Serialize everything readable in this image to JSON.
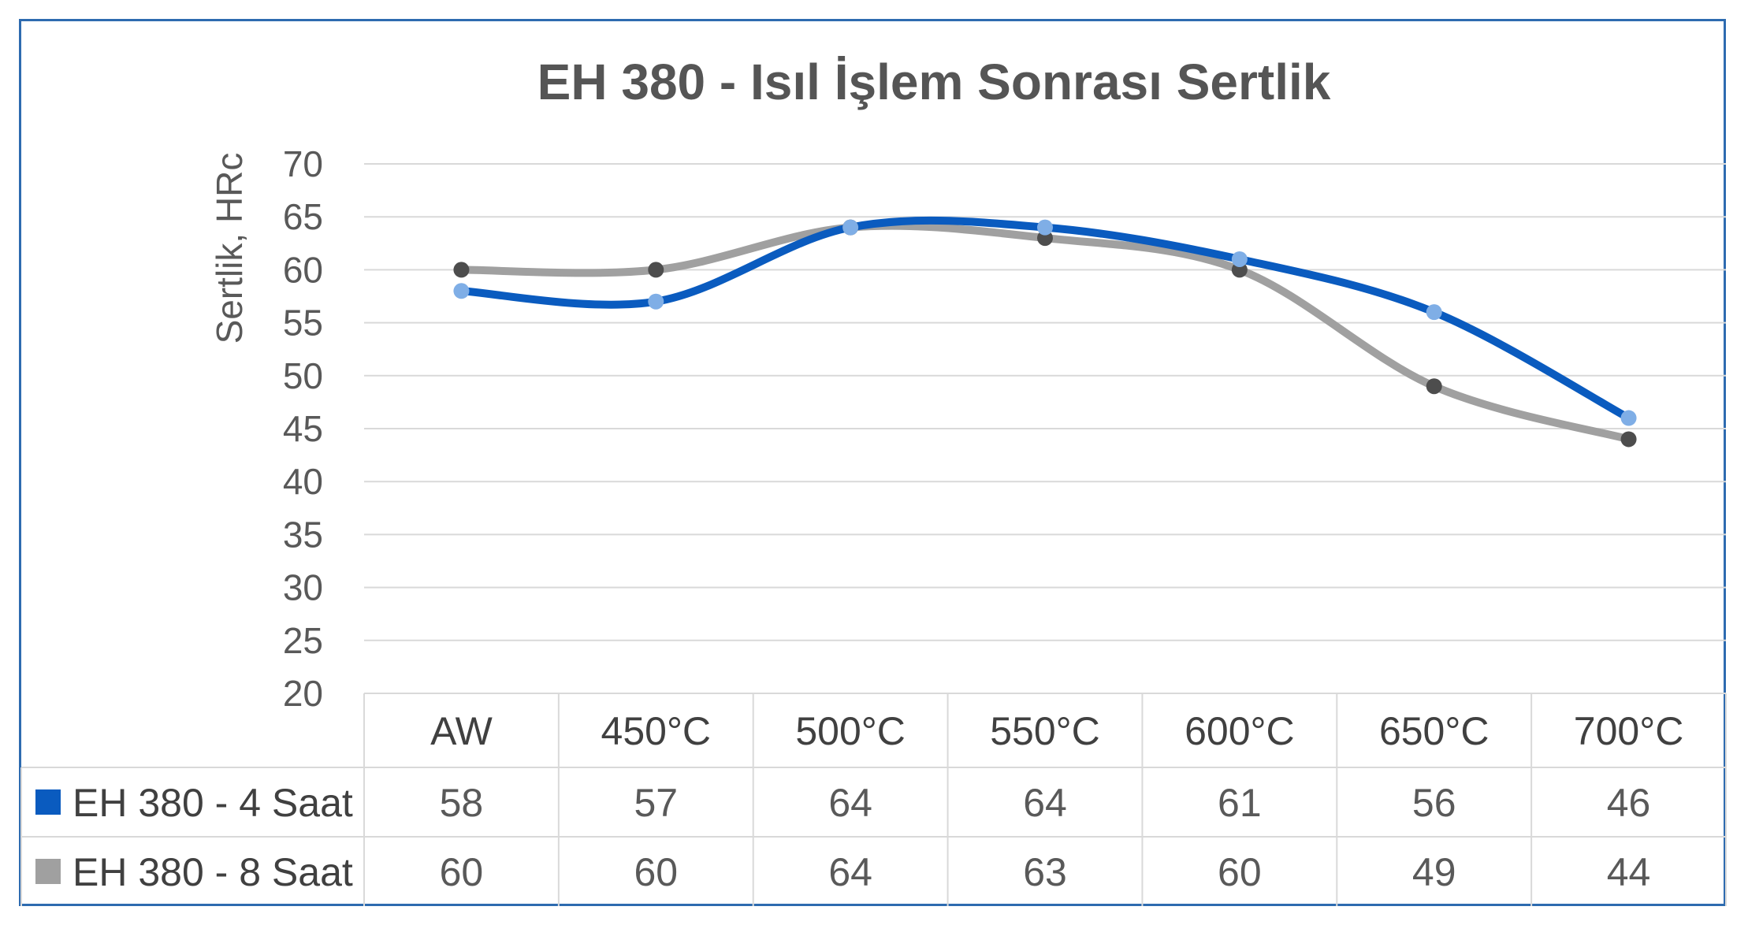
{
  "chart_data": {
    "type": "line",
    "title": "EH 380 - Isıl İşlem Sonrası Sertlik",
    "ylabel": "Sertlik, HRc",
    "xlabel": "",
    "ylim": [
      20,
      70
    ],
    "ytick_step": 5,
    "grid": true,
    "legend_placement": "data-table-left",
    "categories": [
      "AW",
      "450°C",
      "500°C",
      "550°C",
      "600°C",
      "650°C",
      "700°C"
    ],
    "series": [
      {
        "name": "EH 380 - 4 Saat",
        "values": [
          58,
          57,
          64,
          64,
          61,
          56,
          46
        ],
        "line_color": "#0a5bbf",
        "marker_color": "#7faee6"
      },
      {
        "name": "EH 380 - 8 Saat",
        "values": [
          60,
          60,
          64,
          63,
          60,
          49,
          44
        ],
        "line_color": "#a0a0a0",
        "marker_color": "#4d4d4d"
      }
    ],
    "colors": {
      "frame": "#2e6bb0",
      "grid": "#d9d9d9",
      "title": "#555555"
    }
  }
}
